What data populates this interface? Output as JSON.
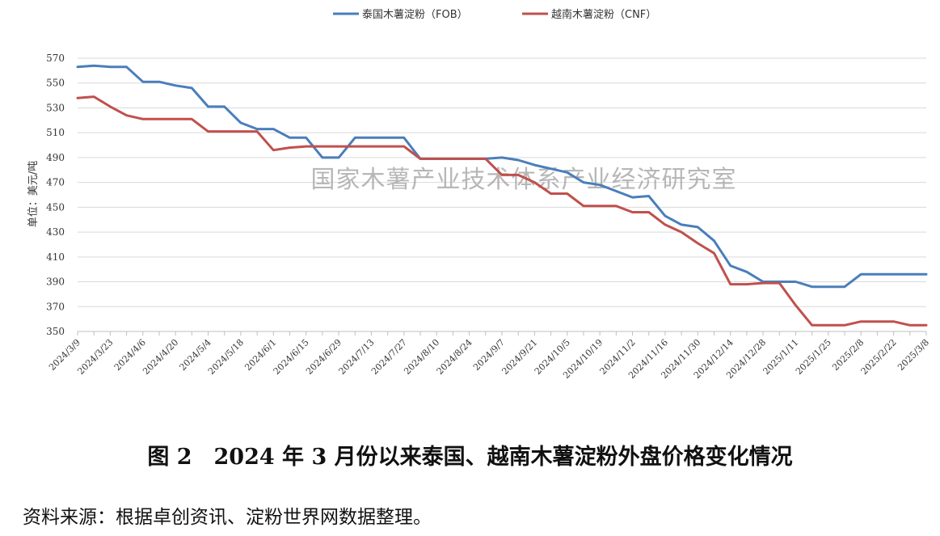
{
  "chart_data": {
    "type": "line",
    "ylabel": "单位：美元/吨",
    "ylim": [
      350,
      570
    ],
    "yticks": [
      350,
      370,
      390,
      410,
      430,
      450,
      470,
      490,
      510,
      530,
      550,
      570
    ],
    "grid": true,
    "legend_position": "top-center",
    "watermark": "国家木薯产业技术体系产业经济研究室",
    "x": [
      "2024/3/9",
      "2024/3/16",
      "2024/3/23",
      "2024/3/30",
      "2024/4/6",
      "2024/4/13",
      "2024/4/20",
      "2024/4/27",
      "2024/5/4",
      "2024/5/11",
      "2024/5/18",
      "2024/5/25",
      "2024/6/1",
      "2024/6/8",
      "2024/6/15",
      "2024/6/22",
      "2024/6/29",
      "2024/7/6",
      "2024/7/13",
      "2024/7/20",
      "2024/7/27",
      "2024/8/3",
      "2024/8/10",
      "2024/8/17",
      "2024/8/24",
      "2024/8/31",
      "2024/9/7",
      "2024/9/14",
      "2024/9/21",
      "2024/9/28",
      "2024/10/5",
      "2024/10/12",
      "2024/10/19",
      "2024/10/26",
      "2024/11/2",
      "2024/11/9",
      "2024/11/16",
      "2024/11/23",
      "2024/11/30",
      "2024/12/7",
      "2024/12/14",
      "2024/12/21",
      "2024/12/28",
      "2025/1/4",
      "2025/1/11",
      "2025/1/18",
      "2025/1/25",
      "2025/2/1",
      "2025/2/8",
      "2025/2/15",
      "2025/2/22",
      "2025/3/1",
      "2025/3/8"
    ],
    "x_tick_labels": [
      "2024/3/9",
      "2024/3/23",
      "2024/4/6",
      "2024/4/20",
      "2024/5/4",
      "2024/5/18",
      "2024/6/1",
      "2024/6/15",
      "2024/6/29",
      "2024/7/13",
      "2024/7/27",
      "2024/8/10",
      "2024/8/24",
      "2024/9/7",
      "2024/9/21",
      "2024/10/5",
      "2024/10/19",
      "2024/11/2",
      "2024/11/16",
      "2024/11/30",
      "2024/12/14",
      "2024/12/28",
      "2025/1/11",
      "2025/1/25",
      "2025/2/8",
      "2025/2/22",
      "2025/3/8"
    ],
    "series": [
      {
        "name": "泰国木薯淀粉（FOB）",
        "color": "#4a7ebb",
        "values": [
          563,
          564,
          563,
          563,
          551,
          551,
          548,
          546,
          531,
          531,
          518,
          513,
          513,
          506,
          506,
          490,
          490,
          506,
          506,
          506,
          506,
          489,
          489,
          489,
          489,
          489,
          490,
          488,
          484,
          481,
          478,
          470,
          468,
          463,
          458,
          459,
          443,
          436,
          434,
          423,
          403,
          398,
          390,
          390,
          390,
          386,
          386,
          386,
          396,
          396,
          396,
          396,
          396
        ]
      },
      {
        "name": "越南木薯淀粉（CNF）",
        "color": "#c0504d",
        "values": [
          538,
          539,
          531,
          524,
          521,
          521,
          521,
          521,
          511,
          511,
          511,
          511,
          496,
          498,
          499,
          499,
          499,
          499,
          499,
          499,
          499,
          489,
          489,
          489,
          489,
          489,
          476,
          476,
          470,
          461,
          461,
          451,
          451,
          451,
          446,
          446,
          436,
          430,
          421,
          413,
          388,
          388,
          389,
          389,
          371,
          355,
          355,
          355,
          358,
          358,
          358,
          355,
          355
        ]
      }
    ]
  },
  "caption": "图 2　2024 年 3 月份以来泰国、越南木薯淀粉外盘价格变化情况",
  "source": "资料来源：根据卓创资讯、淀粉世界网数据整理。"
}
